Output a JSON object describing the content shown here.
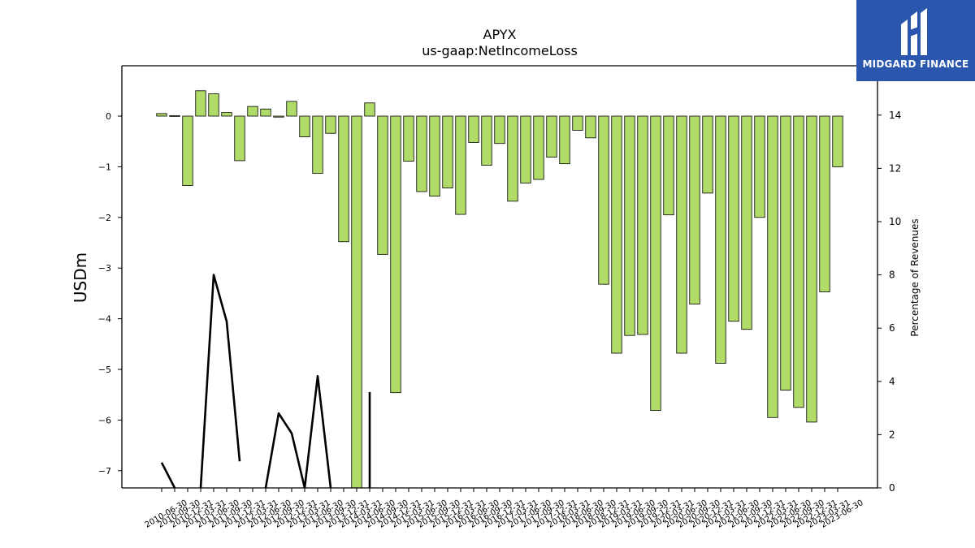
{
  "logo": {
    "text": "MIDGARD FINANCE"
  },
  "chart_data": {
    "type": "bar",
    "title": "APYX",
    "subtitle": "us-gaap:NetIncomeLoss",
    "ylabel": "USDm",
    "y2label": "Percentage of Revenues",
    "ylim": [
      -7.35,
      1.0
    ],
    "y2lim": [
      0,
      16
    ],
    "yticks": [
      0,
      -1,
      -2,
      -3,
      -4,
      -5,
      -6,
      -7
    ],
    "y2ticks": [
      0,
      2,
      4,
      6,
      8,
      10,
      12,
      14
    ],
    "bar_color": "#b2dc6a",
    "line_color": "#000000",
    "categories": [
      "2010-06-30",
      "2010-09-30",
      "2010-12-31",
      "2011-03-31",
      "2011-06-30",
      "2011-09-30",
      "2011-12-31",
      "2012-03-31",
      "2012-06-30",
      "2012-09-30",
      "2012-12-31",
      "2013-03-31",
      "2013-06-30",
      "2013-09-30",
      "2013-12-31",
      "2014-03-31",
      "2014-06-30",
      "2014-09-30",
      "2014-12-31",
      "2015-03-31",
      "2015-06-30",
      "2015-09-30",
      "2015-12-31",
      "2016-03-31",
      "2016-06-30",
      "2016-09-30",
      "2016-12-31",
      "2017-03-31",
      "2017-06-30",
      "2017-09-30",
      "2017-12-31",
      "2018-03-31",
      "2018-06-30",
      "2018-09-30",
      "2018-12-31",
      "2019-03-31",
      "2019-06-30",
      "2019-09-30",
      "2019-12-31",
      "2020-03-31",
      "2020-06-30",
      "2020-09-30",
      "2020-12-31",
      "2021-03-31",
      "2021-06-30",
      "2021-09-30",
      "2021-12-31",
      "2022-03-31",
      "2022-06-30",
      "2022-09-30",
      "2022-12-31",
      "2023-03-31",
      "2023-06-30"
    ],
    "tick_labels": [
      "2010-06-30",
      "2010-09-30",
      "2010-12-31",
      "2011-03-31",
      "2011-06-30",
      "2011-09-30",
      "2011-12-31",
      "2012-03-31",
      "2012-06-30",
      "2012-09-30",
      "2012-12-31",
      "2013-03-31",
      "2013-06-30",
      "2013-09-30",
      "2013-12-31",
      "2014-03-31",
      "2014-06-30",
      "2014-09-30",
      "2014-12-31",
      "2015-03-31",
      "2015-06-30",
      "2015-09-30",
      "2015-12-31",
      "2016-03-31",
      "2016-06-30",
      "2016-09-30",
      "2016-12-31",
      "2017-03-31",
      "2017-06-30",
      "2017-09-30",
      "2017-12-31",
      "2018-03-31",
      "2018-06-30",
      "2018-09-30",
      "2018-12-31",
      "2019-03-31",
      "2019-06-30",
      "2019-09-30",
      "2019-12-31",
      "2020-03-31",
      "2020-06-30",
      "2020-09-30",
      "2020-12-31",
      "2021-03-31",
      "2021-06-30",
      "2021-09-30",
      "2021-12-31",
      "2022-03-31",
      "2022-06-30",
      "2022-09-30",
      "2022-12-31",
      "2023-03-31",
      "2023-06-30"
    ],
    "series": [
      {
        "values": [
          0.05,
          0.01,
          -1.37,
          0.5,
          0.44,
          0.07,
          -0.88,
          0.19,
          0.14,
          -0.02,
          0.29,
          -0.41,
          -1.13,
          -0.34,
          -2.48,
          -7.35,
          0.26,
          -2.73,
          -5.46,
          -0.89,
          -1.49,
          -1.58,
          -1.42,
          -1.94,
          -0.52,
          -0.97,
          -0.54,
          -1.68,
          -1.32,
          -1.25,
          -0.81,
          -0.94,
          -0.28,
          -0.43,
          -3.32,
          -4.68,
          -4.33,
          -4.31,
          -5.81,
          -1.95,
          -4.68,
          -3.71,
          -1.52,
          -4.88,
          -4.05,
          -4.21,
          -2.0,
          -5.95,
          -5.41,
          -5.75,
          -6.04,
          -3.47,
          -1.0
        ]
      },
      {
        "values": [
          0.95,
          0.0,
          null,
          0.0,
          8.0,
          6.25,
          1.0,
          null,
          0.0,
          2.8,
          2.05,
          0.0,
          4.2,
          0.0,
          null,
          null,
          null,
          null,
          null,
          null,
          null,
          null,
          null,
          null,
          null,
          null,
          null,
          null,
          null,
          null,
          null,
          null,
          null,
          null,
          null,
          null,
          null,
          null,
          null,
          null,
          null,
          null,
          null,
          null,
          null,
          null,
          null,
          null,
          null,
          null,
          null,
          null,
          null
        ],
        "extra_segment": {
          "x": 16,
          "from": 0,
          "to": 3.6
        }
      }
    ]
  }
}
